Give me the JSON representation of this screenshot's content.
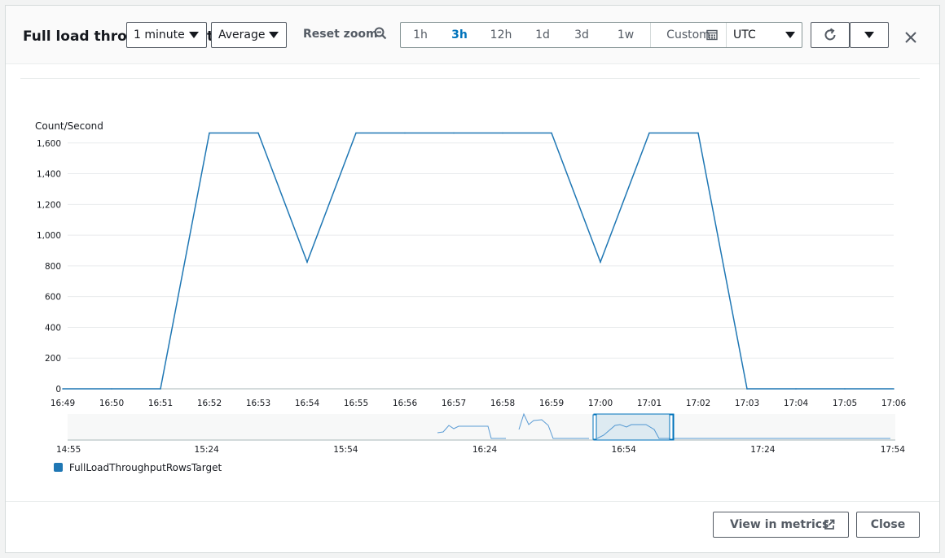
{
  "header": {
    "title": "Full load throughput rows target",
    "title_tail": "t",
    "period_select": "1 minute",
    "stat_select": "Average",
    "reset_zoom": "Reset zoom",
    "ranges": [
      "1h",
      "3h",
      "12h",
      "1d",
      "3d",
      "1w"
    ],
    "active_range": "3h",
    "custom_label": "Custom",
    "timezone": "UTC"
  },
  "chart_data": {
    "type": "line",
    "ylabel": "Count/Second",
    "ylim": [
      0,
      1800
    ],
    "yticks": [
      "0",
      "200",
      "400",
      "600",
      "800",
      "1,000",
      "1,200",
      "1,400",
      "1,600"
    ],
    "ytick_values": [
      0,
      200,
      400,
      600,
      800,
      1000,
      1200,
      1400,
      1600
    ],
    "x_ticks": [
      "16:49",
      "16:50",
      "16:51",
      "16:52",
      "16:53",
      "16:54",
      "16:55",
      "16:56",
      "16:57",
      "16:58",
      "16:59",
      "17:00",
      "17:01",
      "17:02",
      "17:03",
      "17:04",
      "17:05",
      "17:06"
    ],
    "grid": true,
    "legend_position": "bottom-left",
    "series": [
      {
        "name": "FullLoadThroughputRowsTarget",
        "color": "#1f77b4",
        "x": [
          "16:49",
          "16:50",
          "16:51",
          "16:52",
          "16:53",
          "16:54",
          "16:55",
          "16:56",
          "16:57",
          "16:58",
          "16:59",
          "17:00",
          "17:01",
          "17:02",
          "17:03",
          "17:04",
          "17:05",
          "17:06"
        ],
        "y": [
          0,
          0,
          0,
          1665,
          1665,
          825,
          1665,
          1665,
          1665,
          1665,
          1665,
          825,
          1665,
          1665,
          0,
          0,
          0,
          0
        ]
      }
    ],
    "overview": {
      "x_ticks": [
        "14:55",
        "15:24",
        "15:54",
        "16:24",
        "16:54",
        "17:24",
        "17:54"
      ],
      "selection": [
        "16:49",
        "17:06"
      ]
    }
  },
  "footer": {
    "view_in_metrics": "View in metrics",
    "close": "Close"
  }
}
